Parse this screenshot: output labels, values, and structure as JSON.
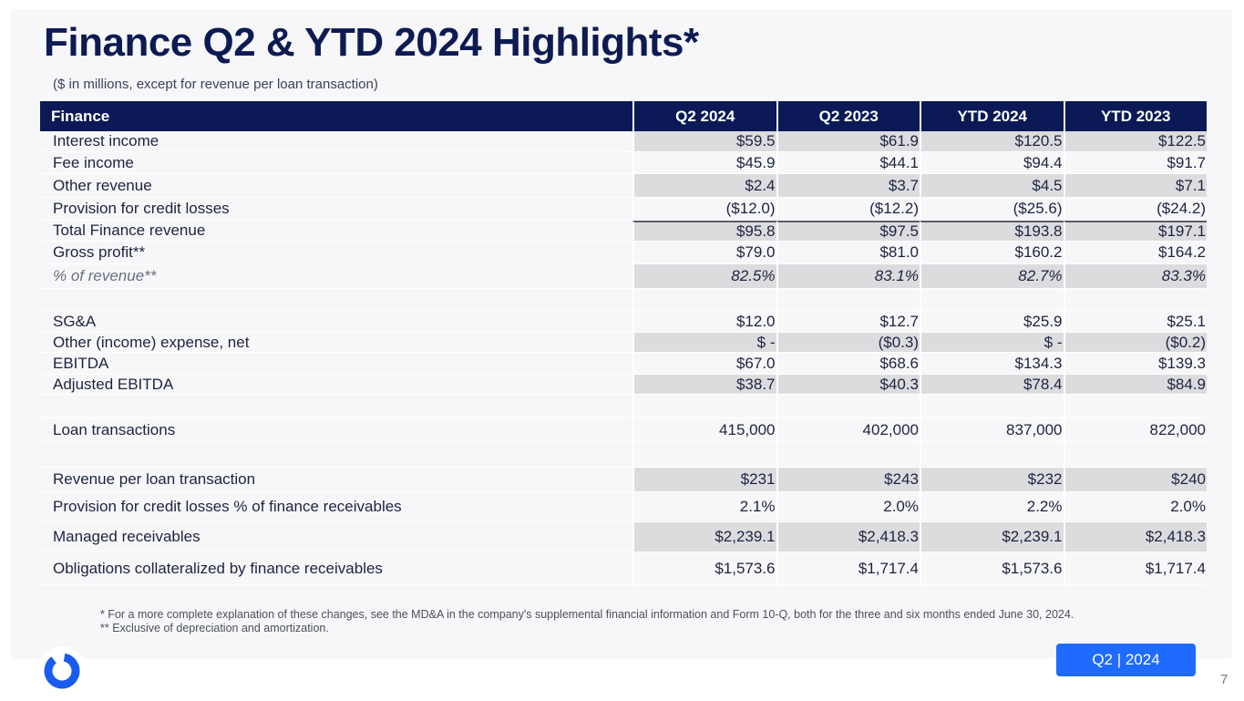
{
  "slide": {
    "title": "Finance Q2 & YTD 2024 Highlights*",
    "subtitle": "($ in millions, except for revenue per loan transaction)",
    "badge": "Q2 | 2024",
    "page_number": "7",
    "logo_icon": "circular-ring-logo-icon",
    "colors": {
      "navy": "#0b1a56",
      "accent": "#1f6bff",
      "shade": "#dcdcdf"
    }
  },
  "table": {
    "headers": [
      "Finance",
      "Q2 2024",
      "Q2 2023",
      "YTD 2024",
      "YTD 2023"
    ],
    "rows": [
      {
        "label": "Interest income",
        "values": [
          "$59.5",
          "$61.9",
          "$120.5",
          "$122.5"
        ]
      },
      {
        "label": "Fee income",
        "values": [
          "$45.9",
          "$44.1",
          "$94.4",
          "$91.7"
        ]
      },
      {
        "label": "Other revenue",
        "values": [
          "$2.4",
          "$3.7",
          "$4.5",
          "$7.1"
        ]
      },
      {
        "label": "Provision for credit losses",
        "values": [
          "($12.0)",
          "($12.2)",
          "($25.6)",
          "($24.2)"
        ]
      },
      {
        "label": "Total Finance revenue",
        "values": [
          "$95.8",
          "$97.5",
          "$193.8",
          "$197.1"
        ]
      },
      {
        "label": "Gross profit**",
        "values": [
          "$79.0",
          "$81.0",
          "$160.2",
          "$164.2"
        ]
      },
      {
        "label": "% of revenue**",
        "values": [
          "82.5%",
          "83.1%",
          "82.7%",
          "83.3%"
        ]
      },
      {
        "label": "",
        "values": [
          "",
          "",
          "",
          ""
        ]
      },
      {
        "label": "SG&A",
        "values": [
          "$12.0",
          "$12.7",
          "$25.9",
          "$25.1"
        ]
      },
      {
        "label": "Other (income) expense, net",
        "values": [
          "$ -",
          "($0.3)",
          "$ -",
          "($0.2)"
        ]
      },
      {
        "label": "EBITDA",
        "values": [
          "$67.0",
          "$68.6",
          "$134.3",
          "$139.3"
        ]
      },
      {
        "label": "Adjusted EBITDA",
        "values": [
          "$38.7",
          "$40.3",
          "$78.4",
          "$84.9"
        ]
      },
      {
        "label": "",
        "values": [
          "",
          "",
          "",
          ""
        ]
      },
      {
        "label": "Loan transactions",
        "values": [
          "415,000",
          "402,000",
          "837,000",
          "822,000"
        ]
      },
      {
        "label": "",
        "values": [
          "",
          "",
          "",
          ""
        ]
      },
      {
        "label": "Revenue per loan transaction",
        "values": [
          "$231",
          "$243",
          "$232",
          "$240"
        ]
      },
      {
        "label": "Provision for credit losses % of finance receivables",
        "values": [
          "2.1%",
          "2.0%",
          "2.2%",
          "2.0%"
        ]
      },
      {
        "label": "Managed receivables",
        "values": [
          "$2,239.1",
          "$2,418.3",
          "$2,239.1",
          "$2,418.3"
        ]
      },
      {
        "label": "Obligations collateralized by finance receivables",
        "values": [
          "$1,573.6",
          "$1,717.4",
          "$1,573.6",
          "$1,717.4"
        ]
      }
    ]
  },
  "footnotes": [
    "* For a more complete explanation of these changes, see the MD&A in the company's supplemental financial information and Form 10-Q, both for the three and six months ended June 30, 2024.",
    "** Exclusive of depreciation and amortization."
  ]
}
